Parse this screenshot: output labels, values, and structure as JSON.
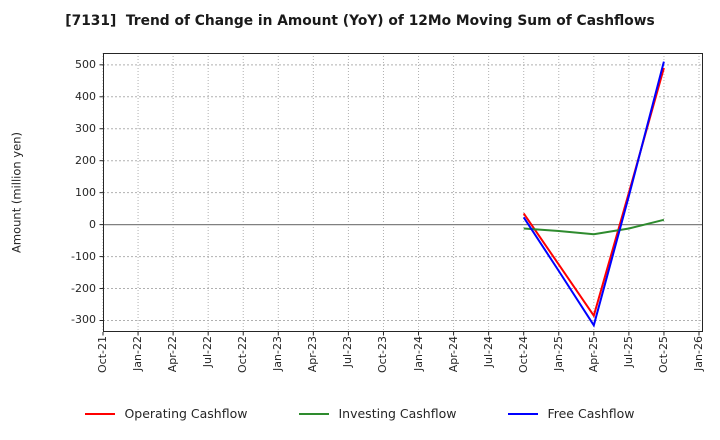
{
  "figure": {
    "title": "[7131]  Trend of Change in Amount (YoY) of 12Mo Moving Sum of Cashflows",
    "background": "#ffffff"
  },
  "chart_data": {
    "type": "line",
    "title": "[7131]  Trend of Change in Amount (YoY) of 12Mo Moving Sum of Cashflows",
    "xlabel": "",
    "ylabel": "Amount (million yen)",
    "x_ticks": [
      "Oct-21",
      "Jan-22",
      "Apr-22",
      "Jul-22",
      "Oct-22",
      "Jan-23",
      "Apr-23",
      "Jul-23",
      "Oct-23",
      "Jan-24",
      "Apr-24",
      "Jul-24",
      "Oct-24",
      "Jan-25",
      "Apr-25",
      "Jul-25",
      "Oct-25",
      "Jan-26"
    ],
    "y_ticks": [
      500,
      400,
      300,
      200,
      100,
      0,
      -100,
      -200,
      -300
    ],
    "ylim": [
      -336,
      537
    ],
    "grid": true,
    "zero_line": true,
    "legend_position": "bottom",
    "axis_color": "#262626",
    "grid_color": "#b0b0b0",
    "zero_line_color": "#808080",
    "series": [
      {
        "name": "Operating Cashflow",
        "color": "#ff0000",
        "points": [
          {
            "x": "Oct-24",
            "y": 35
          },
          {
            "x": "Jan-25",
            "y": -125
          },
          {
            "x": "Apr-25",
            "y": -285
          },
          {
            "x": "Jul-25",
            "y": 100
          },
          {
            "x": "Oct-25",
            "y": 490
          }
        ]
      },
      {
        "name": "Investing Cashflow",
        "color": "#2e8b2e",
        "points": [
          {
            "x": "Oct-24",
            "y": -12
          },
          {
            "x": "Jan-25",
            "y": -20
          },
          {
            "x": "Apr-25",
            "y": -30
          },
          {
            "x": "Jul-25",
            "y": -12
          },
          {
            "x": "Oct-25",
            "y": 15
          }
        ]
      },
      {
        "name": "Free Cashflow",
        "color": "#0000ff",
        "points": [
          {
            "x": "Oct-24",
            "y": 23
          },
          {
            "x": "Jan-25",
            "y": -145
          },
          {
            "x": "Apr-25",
            "y": -315
          },
          {
            "x": "Jul-25",
            "y": 90
          },
          {
            "x": "Oct-25",
            "y": 510
          }
        ]
      }
    ]
  }
}
